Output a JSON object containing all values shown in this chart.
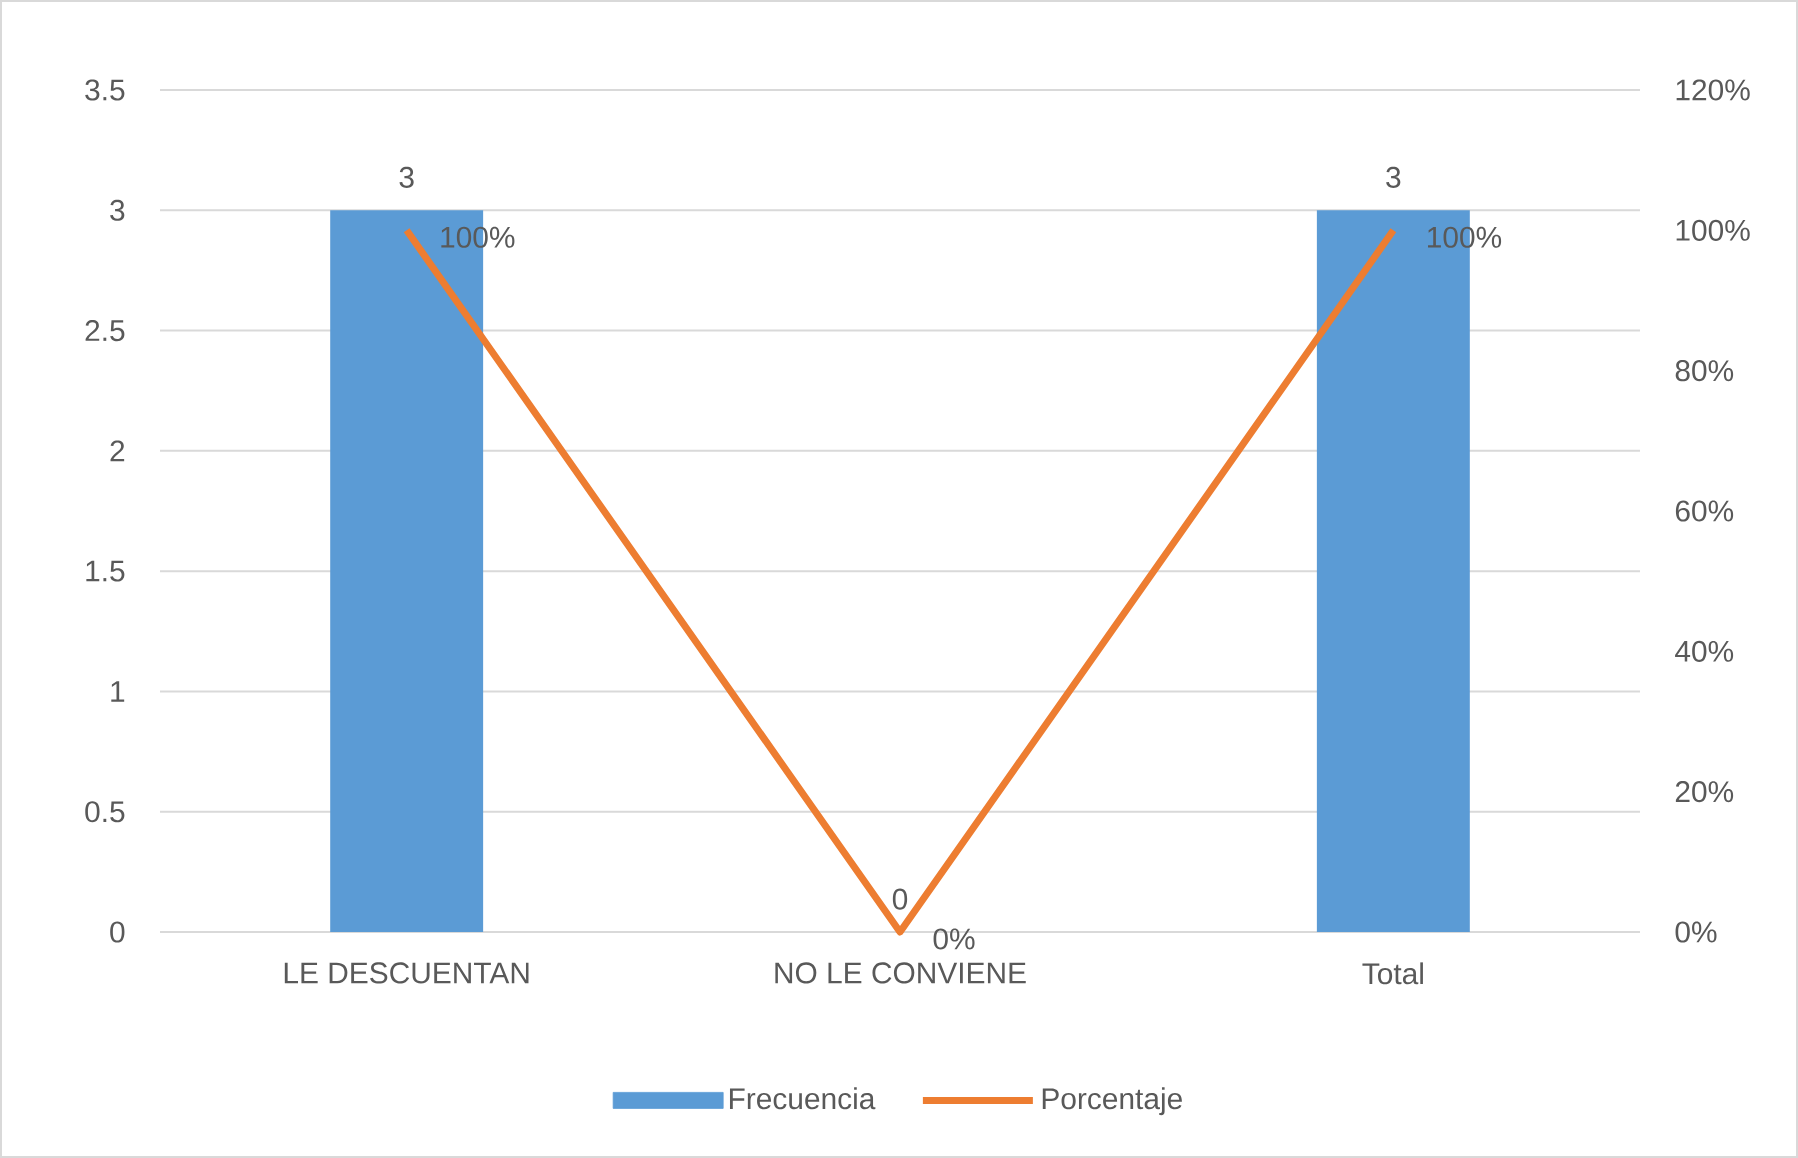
{
  "chart_data": {
    "type": "bar",
    "categories": [
      "LE DESCUENTAN",
      "NO LE CONVIENE",
      "Total"
    ],
    "series": [
      {
        "name": "Frecuencia",
        "color": "#5b9bd5",
        "values": [
          3,
          0,
          3
        ],
        "value_labels": [
          "3",
          "0",
          "3"
        ]
      },
      {
        "name": "Porcentaje",
        "type": "line",
        "axis": "y2",
        "color": "#ed7d31",
        "values": [
          100,
          0,
          100
        ],
        "value_labels": [
          "100%",
          "0%",
          "100%"
        ]
      }
    ],
    "ylim": [
      0,
      3.5
    ],
    "yticks": [
      0,
      0.5,
      1,
      1.5,
      2,
      2.5,
      3,
      3.5
    ],
    "y2lim": [
      0,
      120
    ],
    "y2ticks": [
      {
        "value": 0,
        "label": "0%"
      },
      {
        "value": 20,
        "label": "20%"
      },
      {
        "value": 40,
        "label": "40%"
      },
      {
        "value": 60,
        "label": "60%"
      },
      {
        "value": 80,
        "label": "80%"
      },
      {
        "value": 100,
        "label": "100%"
      },
      {
        "value": 120,
        "label": "120%"
      }
    ],
    "grid": "y",
    "legend": "bottom"
  }
}
